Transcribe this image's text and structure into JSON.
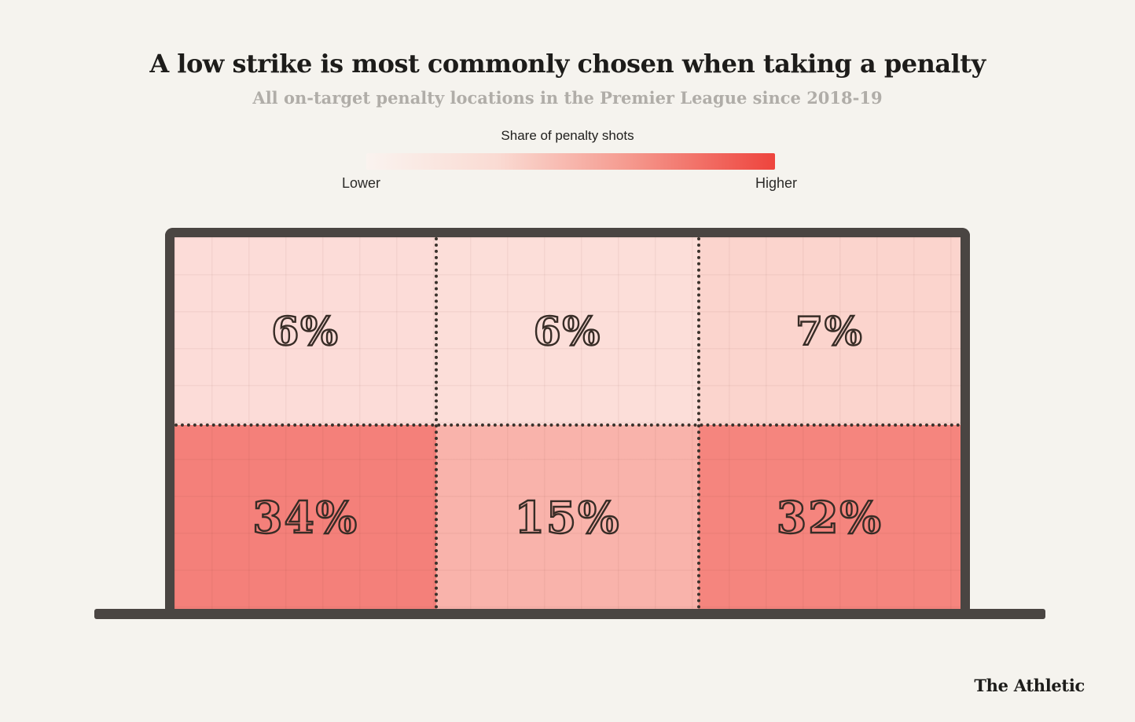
{
  "chart_data": {
    "type": "heatmap",
    "title": "A low strike is most commonly chosen when taking a penalty",
    "subtitle": "All on-target penalty locations in the Premier League since 2018-19",
    "legend": {
      "title": "Share of penalty shots",
      "min_label": "Lower",
      "max_label": "Higher",
      "position": "top",
      "gradient": [
        "#faf3ef 0%",
        "#fadbd3 32%",
        "#f59a8f 64%",
        "#ee443d 100%"
      ]
    },
    "unit": "percent",
    "rows": [
      "top",
      "bottom"
    ],
    "columns": [
      "left",
      "center",
      "right"
    ],
    "values": [
      [
        6,
        6,
        7
      ],
      [
        34,
        15,
        32
      ]
    ],
    "cells": [
      {
        "row": "top",
        "col": "left",
        "value": 6,
        "label": "6%",
        "color": "#fcdcd8"
      },
      {
        "row": "top",
        "col": "center",
        "value": 6,
        "label": "6%",
        "color": "#fcded9"
      },
      {
        "row": "top",
        "col": "right",
        "value": 7,
        "label": "7%",
        "color": "#fbd4cd"
      },
      {
        "row": "bottom",
        "col": "left",
        "value": 34,
        "label": "34%",
        "color": "#f4807a"
      },
      {
        "row": "bottom",
        "col": "center",
        "value": 15,
        "label": "15%",
        "color": "#f9b3ab"
      },
      {
        "row": "bottom",
        "col": "right",
        "value": 32,
        "label": "32%",
        "color": "#f5857e"
      }
    ],
    "frame_color": "#4a4542",
    "background_color": "#f5f3ee"
  },
  "source": {
    "label": "The Athletic"
  }
}
